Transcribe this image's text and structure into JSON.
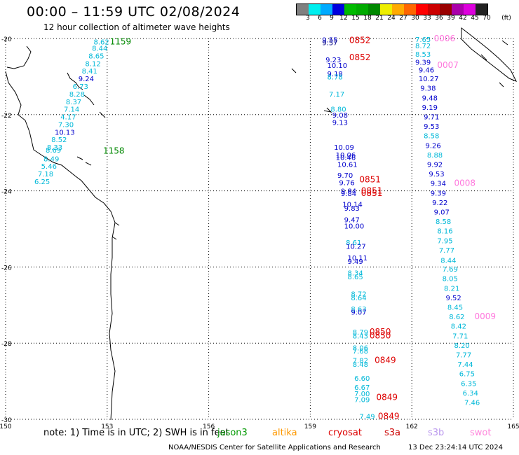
{
  "title": "00:00 – 11:59 UTC 02/08/2024",
  "subtitle": "12 hour collection of altimeter wave heights",
  "colorbar": {
    "colors": [
      "#808080",
      "#00eeee",
      "#00aaff",
      "#0000dd",
      "#00bb00",
      "#00aa00",
      "#008800",
      "#eeee00",
      "#ffaa00",
      "#ff6600",
      "#ff0000",
      "#cc0000",
      "#990000",
      "#aa00aa",
      "#dd00dd",
      "#222222"
    ],
    "labels": [
      "3",
      "6",
      "9",
      "12",
      "15",
      "18",
      "21",
      "24",
      "27",
      "30",
      "33",
      "36",
      "39",
      "42",
      "45",
      "70",
      "(ft)"
    ]
  },
  "note": "note:  1) Time is in UTC;  2) SWH is in feet",
  "satellites": [
    {
      "name": "jason3",
      "color": "#009900"
    },
    {
      "name": "altika",
      "color": "#ff9900"
    },
    {
      "name": "cryosat",
      "color": "#dd0000"
    },
    {
      "name": "s3a",
      "color": "#cc0000"
    },
    {
      "name": "s3b",
      "color": "#bb99ee"
    },
    {
      "name": "swot",
      "color": "#ff88dd"
    }
  ],
  "footer_left": "NOAA/NESDIS Center for Satellite Applications and Research",
  "footer_right": "13 Dec 23:24:14 UTC 2024",
  "chart_data": {
    "type": "scatter",
    "xlim": [
      150,
      165
    ],
    "ylim": [
      -30,
      -20
    ],
    "xticks": [
      "150",
      "153",
      "156",
      "159",
      "162",
      "165"
    ],
    "yticks": [
      "-20",
      "-22",
      "-24",
      "-26",
      "-28",
      "-30"
    ],
    "grid": true,
    "colors": {
      "cyan": "#00b8d8",
      "blue": "#0000cc",
      "navy": "#000080",
      "green": "#008800",
      "red": "#dd0000",
      "pink": "#ff77dd"
    },
    "points": [
      {
        "x": 152.6,
        "y": -20.08,
        "v": "8.62",
        "c": "cyan"
      },
      {
        "x": 152.55,
        "y": -20.25,
        "v": "8.44",
        "c": "cyan"
      },
      {
        "x": 152.45,
        "y": -20.45,
        "v": "8.65",
        "c": "cyan"
      },
      {
        "x": 152.35,
        "y": -20.65,
        "v": "8.12",
        "c": "cyan"
      },
      {
        "x": 152.25,
        "y": -20.85,
        "v": "8.41",
        "c": "cyan"
      },
      {
        "x": 152.15,
        "y": -21.05,
        "v": "9.24",
        "c": "blue"
      },
      {
        "x": 151.98,
        "y": -21.25,
        "v": "6.73",
        "c": "cyan"
      },
      {
        "x": 151.88,
        "y": -21.45,
        "v": "8.28",
        "c": "cyan"
      },
      {
        "x": 151.78,
        "y": -21.65,
        "v": "8.37",
        "c": "cyan"
      },
      {
        "x": 151.72,
        "y": -21.85,
        "v": "7.14",
        "c": "cyan"
      },
      {
        "x": 151.62,
        "y": -22.05,
        "v": "4.17",
        "c": "cyan"
      },
      {
        "x": 151.55,
        "y": -22.25,
        "v": "7.30",
        "c": "cyan"
      },
      {
        "x": 151.45,
        "y": -22.45,
        "v": "10.13",
        "c": "blue"
      },
      {
        "x": 151.35,
        "y": -22.65,
        "v": "8.52",
        "c": "cyan"
      },
      {
        "x": 151.22,
        "y": -22.85,
        "v": "8.33",
        "c": "cyan"
      },
      {
        "x": 151.18,
        "y": -22.92,
        "v": "8.69",
        "c": "cyan"
      },
      {
        "x": 151.12,
        "y": -23.15,
        "v": "8.49",
        "c": "cyan"
      },
      {
        "x": 151.05,
        "y": -23.35,
        "v": "5.46",
        "c": "cyan"
      },
      {
        "x": 150.95,
        "y": -23.55,
        "v": "7.18",
        "c": "cyan"
      },
      {
        "x": 150.85,
        "y": -23.75,
        "v": "6.25",
        "c": "cyan"
      },
      {
        "x": 153.08,
        "y": -20.08,
        "v": "1159",
        "c": "green",
        "label": true
      },
      {
        "x": 152.88,
        "y": -22.95,
        "v": "1158",
        "c": "green",
        "label": true
      },
      {
        "x": 159.35,
        "y": -20.03,
        "v": "9.55",
        "c": "blue"
      },
      {
        "x": 159.35,
        "y": -20.1,
        "v": "9.57",
        "c": "navy"
      },
      {
        "x": 160.15,
        "y": -20.05,
        "v": "0852",
        "c": "red",
        "label": true
      },
      {
        "x": 159.45,
        "y": -20.55,
        "v": "9.23",
        "c": "blue"
      },
      {
        "x": 159.5,
        "y": -20.7,
        "v": "10.10",
        "c": "blue"
      },
      {
        "x": 160.15,
        "y": -20.5,
        "v": "0852",
        "c": "red",
        "label": true
      },
      {
        "x": 159.5,
        "y": -20.92,
        "v": "9.18",
        "c": "blue"
      },
      {
        "x": 159.5,
        "y": -21.0,
        "v": "8.78",
        "c": "cyan"
      },
      {
        "x": 159.55,
        "y": -21.45,
        "v": "7.17",
        "c": "cyan"
      },
      {
        "x": 159.6,
        "y": -21.85,
        "v": "8.80",
        "c": "cyan"
      },
      {
        "x": 159.65,
        "y": -22.0,
        "v": "9.08",
        "c": "blue"
      },
      {
        "x": 159.65,
        "y": -22.2,
        "v": "9.13",
        "c": "blue"
      },
      {
        "x": 159.7,
        "y": -22.85,
        "v": "10.09",
        "c": "blue"
      },
      {
        "x": 159.75,
        "y": -23.05,
        "v": "10.06",
        "c": "blue"
      },
      {
        "x": 159.75,
        "y": -23.12,
        "v": "10.46",
        "c": "blue"
      },
      {
        "x": 159.8,
        "y": -23.3,
        "v": "10.61",
        "c": "blue"
      },
      {
        "x": 159.8,
        "y": -23.58,
        "v": "9.70",
        "c": "blue"
      },
      {
        "x": 159.85,
        "y": -23.78,
        "v": "9.76",
        "c": "blue"
      },
      {
        "x": 160.45,
        "y": -23.7,
        "v": "0851",
        "c": "red",
        "label": true
      },
      {
        "x": 159.9,
        "y": -24.0,
        "v": "9.84",
        "c": "blue"
      },
      {
        "x": 159.9,
        "y": -24.06,
        "v": "9.84",
        "c": "blue"
      },
      {
        "x": 160.5,
        "y": -24.0,
        "v": "0851",
        "c": "red",
        "label": true
      },
      {
        "x": 160.5,
        "y": -24.06,
        "v": "0851",
        "c": "red",
        "label": true
      },
      {
        "x": 159.95,
        "y": -24.35,
        "v": "10.14",
        "c": "blue"
      },
      {
        "x": 160.0,
        "y": -24.45,
        "v": "9.83",
        "c": "blue"
      },
      {
        "x": 160.0,
        "y": -24.75,
        "v": "9.47",
        "c": "blue"
      },
      {
        "x": 160.0,
        "y": -24.92,
        "v": "10.00",
        "c": "blue"
      },
      {
        "x": 160.05,
        "y": -25.35,
        "v": "8.61",
        "c": "cyan"
      },
      {
        "x": 160.05,
        "y": -25.45,
        "v": "10.27",
        "c": "blue"
      },
      {
        "x": 160.1,
        "y": -25.75,
        "v": "10.11",
        "c": "blue"
      },
      {
        "x": 160.1,
        "y": -25.85,
        "v": "9.49",
        "c": "blue"
      },
      {
        "x": 160.1,
        "y": -26.15,
        "v": "8.34",
        "c": "cyan"
      },
      {
        "x": 160.1,
        "y": -26.25,
        "v": "8.65",
        "c": "cyan"
      },
      {
        "x": 160.2,
        "y": -26.7,
        "v": "8.72",
        "c": "cyan"
      },
      {
        "x": 160.2,
        "y": -26.8,
        "v": "8.64",
        "c": "cyan"
      },
      {
        "x": 160.2,
        "y": -27.1,
        "v": "8.63",
        "c": "cyan"
      },
      {
        "x": 160.2,
        "y": -27.18,
        "v": "9.07",
        "c": "blue"
      },
      {
        "x": 160.25,
        "y": -27.7,
        "v": "8.79",
        "c": "cyan"
      },
      {
        "x": 160.25,
        "y": -27.8,
        "v": "8.43",
        "c": "cyan"
      },
      {
        "x": 160.75,
        "y": -27.7,
        "v": "0850",
        "c": "red",
        "label": true
      },
      {
        "x": 160.75,
        "y": -27.8,
        "v": "0850",
        "c": "red",
        "label": true
      },
      {
        "x": 160.25,
        "y": -28.12,
        "v": "8.06",
        "c": "cyan"
      },
      {
        "x": 160.25,
        "y": -28.2,
        "v": "7.68",
        "c": "cyan"
      },
      {
        "x": 160.25,
        "y": -28.45,
        "v": "7.82",
        "c": "cyan"
      },
      {
        "x": 160.25,
        "y": -28.55,
        "v": "8.48",
        "c": "cyan"
      },
      {
        "x": 160.9,
        "y": -28.45,
        "v": "0849",
        "c": "red",
        "label": true
      },
      {
        "x": 160.3,
        "y": -28.92,
        "v": "6.60",
        "c": "cyan"
      },
      {
        "x": 160.3,
        "y": -29.15,
        "v": "6.67",
        "c": "cyan"
      },
      {
        "x": 160.3,
        "y": -29.32,
        "v": "7.00",
        "c": "cyan"
      },
      {
        "x": 160.3,
        "y": -29.48,
        "v": "7.09",
        "c": "cyan"
      },
      {
        "x": 160.95,
        "y": -29.42,
        "v": "0849",
        "c": "red",
        "label": true
      },
      {
        "x": 160.45,
        "y": -29.92,
        "v": "7.49",
        "c": "cyan"
      },
      {
        "x": 161.0,
        "y": -29.92,
        "v": "0849",
        "c": "red",
        "label": true
      },
      {
        "x": 162.1,
        "y": -20.02,
        "v": "7.65",
        "c": "cyan"
      },
      {
        "x": 162.1,
        "y": -20.18,
        "v": "8.72",
        "c": "cyan"
      },
      {
        "x": 162.1,
        "y": -20.4,
        "v": "8.53",
        "c": "cyan"
      },
      {
        "x": 162.1,
        "y": -20.62,
        "v": "9.39",
        "c": "blue"
      },
      {
        "x": 162.2,
        "y": -20.82,
        "v": "9.46",
        "c": "blue"
      },
      {
        "x": 162.2,
        "y": -21.05,
        "v": "10.27",
        "c": "blue"
      },
      {
        "x": 162.25,
        "y": -21.3,
        "v": "9.38",
        "c": "blue"
      },
      {
        "x": 162.3,
        "y": -21.55,
        "v": "9.48",
        "c": "blue"
      },
      {
        "x": 162.3,
        "y": -21.8,
        "v": "9.19",
        "c": "blue"
      },
      {
        "x": 162.35,
        "y": -22.05,
        "v": "9.71",
        "c": "blue"
      },
      {
        "x": 162.35,
        "y": -22.3,
        "v": "9.53",
        "c": "blue"
      },
      {
        "x": 162.35,
        "y": -22.55,
        "v": "8.58",
        "c": "cyan"
      },
      {
        "x": 162.4,
        "y": -22.8,
        "v": "9.26",
        "c": "blue"
      },
      {
        "x": 162.45,
        "y": -23.05,
        "v": "8.88",
        "c": "cyan"
      },
      {
        "x": 162.45,
        "y": -23.3,
        "v": "9.92",
        "c": "blue"
      },
      {
        "x": 162.5,
        "y": -23.55,
        "v": "9.53",
        "c": "blue"
      },
      {
        "x": 162.55,
        "y": -23.8,
        "v": "9.34",
        "c": "blue"
      },
      {
        "x": 162.55,
        "y": -24.05,
        "v": "9.39",
        "c": "blue"
      },
      {
        "x": 162.6,
        "y": -24.3,
        "v": "9.22",
        "c": "blue"
      },
      {
        "x": 162.65,
        "y": -24.55,
        "v": "9.07",
        "c": "blue"
      },
      {
        "x": 162.7,
        "y": -24.8,
        "v": "8.58",
        "c": "cyan"
      },
      {
        "x": 162.75,
        "y": -25.05,
        "v": "8.16",
        "c": "cyan"
      },
      {
        "x": 162.75,
        "y": -25.3,
        "v": "7.95",
        "c": "cyan"
      },
      {
        "x": 162.8,
        "y": -25.55,
        "v": "7.77",
        "c": "cyan"
      },
      {
        "x": 162.85,
        "y": -25.82,
        "v": "8.44",
        "c": "cyan"
      },
      {
        "x": 162.9,
        "y": -26.05,
        "v": "7.69",
        "c": "cyan"
      },
      {
        "x": 162.9,
        "y": -26.3,
        "v": "8.05",
        "c": "cyan"
      },
      {
        "x": 162.95,
        "y": -26.55,
        "v": "8.21",
        "c": "cyan"
      },
      {
        "x": 163.0,
        "y": -26.8,
        "v": "9.52",
        "c": "blue"
      },
      {
        "x": 163.05,
        "y": -27.05,
        "v": "8.45",
        "c": "cyan"
      },
      {
        "x": 163.1,
        "y": -27.3,
        "v": "8.62",
        "c": "cyan"
      },
      {
        "x": 163.15,
        "y": -27.55,
        "v": "8.42",
        "c": "cyan"
      },
      {
        "x": 163.2,
        "y": -27.8,
        "v": "7.71",
        "c": "cyan"
      },
      {
        "x": 163.25,
        "y": -28.05,
        "v": "8.20",
        "c": "cyan"
      },
      {
        "x": 163.3,
        "y": -28.3,
        "v": "7.77",
        "c": "cyan"
      },
      {
        "x": 163.35,
        "y": -28.55,
        "v": "7.44",
        "c": "cyan"
      },
      {
        "x": 163.4,
        "y": -28.8,
        "v": "6.75",
        "c": "cyan"
      },
      {
        "x": 163.45,
        "y": -29.05,
        "v": "6.35",
        "c": "cyan"
      },
      {
        "x": 163.5,
        "y": -29.3,
        "v": "6.34",
        "c": "cyan"
      },
      {
        "x": 163.55,
        "y": -29.55,
        "v": "7.46",
        "c": "cyan"
      },
      {
        "x": 162.65,
        "y": -20.0,
        "v": "0006",
        "c": "pink",
        "label": true
      },
      {
        "x": 162.75,
        "y": -20.7,
        "v": "0007",
        "c": "pink",
        "label": true
      },
      {
        "x": 163.25,
        "y": -23.8,
        "v": "0008",
        "c": "pink",
        "label": true
      },
      {
        "x": 163.85,
        "y": -27.3,
        "v": "0009",
        "c": "pink",
        "label": true
      }
    ]
  }
}
